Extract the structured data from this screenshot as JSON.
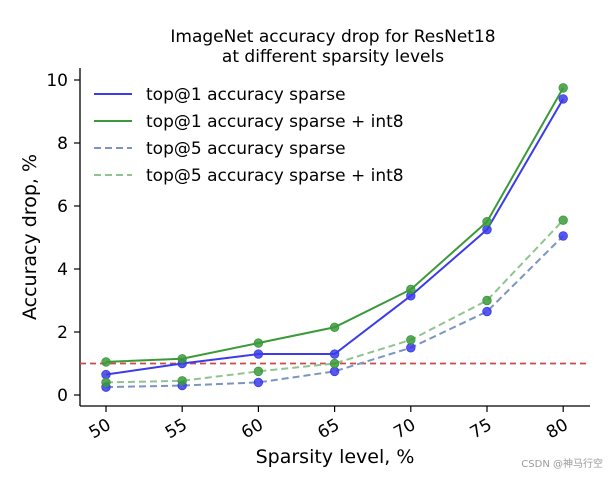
{
  "chart_data": {
    "type": "line",
    "title": [
      "ImageNet accuracy drop for ResNet18",
      "at different sparsity levels"
    ],
    "xlabel": "Sparsity level, %",
    "ylabel": "Accuracy drop, %",
    "categories": [
      "50",
      "55",
      "60",
      "65",
      "70",
      "75",
      "80"
    ],
    "yticks": [
      "0",
      "2",
      "4",
      "6",
      "8",
      "10"
    ],
    "ylim": [
      -0.3,
      10.3
    ],
    "series": [
      {
        "name": "top@1 accuracy sparse",
        "style": "solid",
        "color": "#3b3bea",
        "values": [
          0.65,
          1.0,
          1.3,
          1.3,
          3.15,
          5.25,
          9.4
        ]
      },
      {
        "name": "top@1 accuracy sparse + int8",
        "style": "solid",
        "color": "#3a9a3a",
        "values": [
          1.05,
          1.15,
          1.65,
          2.15,
          3.35,
          5.5,
          9.75
        ]
      },
      {
        "name": "top@5 accuracy sparse",
        "style": "dashed",
        "color": "#7b95c0",
        "values": [
          0.25,
          0.3,
          0.4,
          0.75,
          1.5,
          2.65,
          5.05
        ]
      },
      {
        "name": "top@5 accuracy sparse + int8",
        "style": "dashed",
        "color": "#8fc48f",
        "values": [
          0.4,
          0.45,
          0.75,
          1.0,
          1.75,
          3.0,
          5.55
        ]
      }
    ],
    "marker_colors": {
      "blue": "#3b3bea",
      "green": "#3a9a3a"
    },
    "reference_line": {
      "y": 1.0,
      "style": "dashed",
      "color": "#d04848"
    },
    "grid": false,
    "legend_position": "top-left"
  },
  "watermark": "CSDN @神马行空"
}
